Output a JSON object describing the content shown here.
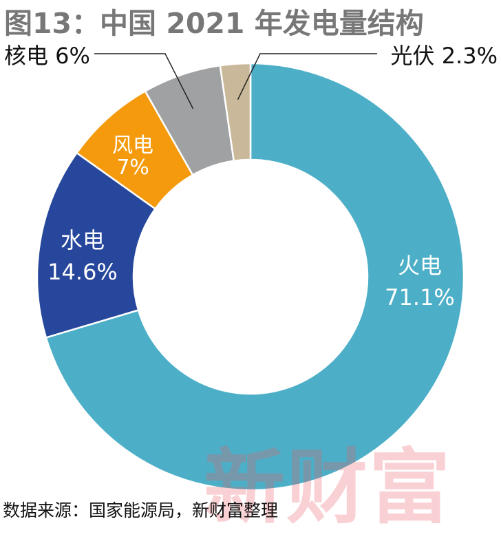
{
  "title": "图13：中国 2021 年发电量结构",
  "source": "数据来源：国家能源局，新财富整理",
  "watermark": "新财富",
  "chart_data": {
    "type": "pie",
    "style": "donut",
    "title": "图13：中国 2021 年发电量结构",
    "unit": "%",
    "categories": [
      "火电",
      "水电",
      "风电",
      "核电",
      "光伏"
    ],
    "values": [
      71.1,
      14.6,
      7,
      6,
      2.3
    ],
    "value_labels": [
      "71.1%",
      "14.6%",
      "7%",
      "6%",
      "2.3%"
    ],
    "colors": [
      "#4cafc7",
      "#27479c",
      "#f49a0c",
      "#a0a1a3",
      "#c9b99a"
    ],
    "start": "12 o'clock",
    "direction": "clockwise",
    "legend": "none"
  }
}
